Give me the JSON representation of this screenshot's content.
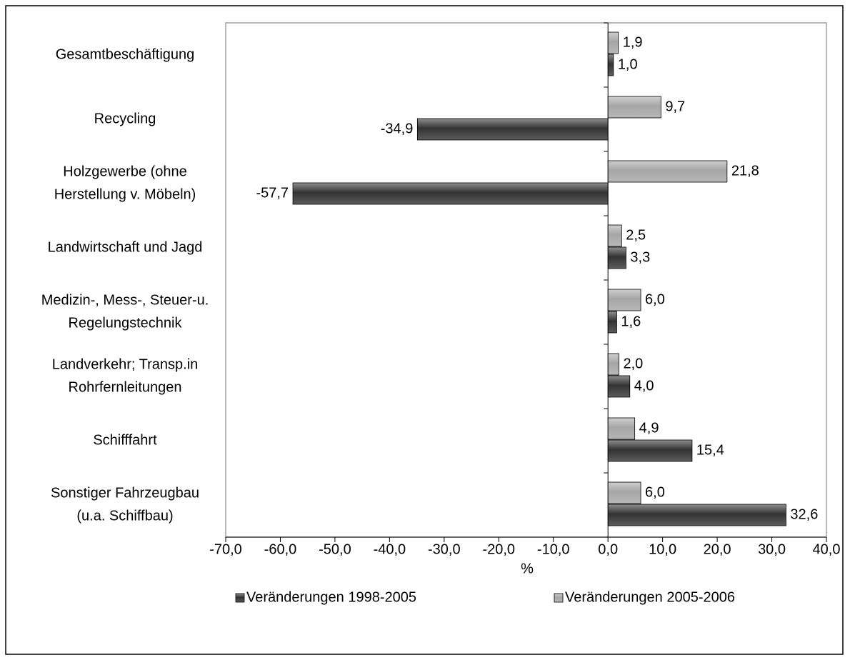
{
  "chart_data": {
    "type": "bar",
    "orientation": "horizontal",
    "categories": [
      [
        "Gesamtbeschäftigung"
      ],
      [
        "Recycling"
      ],
      [
        "Holzgewerbe (ohne",
        "Herstellung v. Möbeln)"
      ],
      [
        "Landwirtschaft und Jagd"
      ],
      [
        "Medizin-, Mess-, Steuer-u.",
        "Regelungstechnik"
      ],
      [
        "Landverkehr; Transp.in",
        "Rohrfernleitungen"
      ],
      [
        "Schifffahrt"
      ],
      [
        "Sonstiger Fahrzeugbau",
        "(u.a. Schiffbau)"
      ]
    ],
    "series": [
      {
        "name": "Veränderungen 1998-2005",
        "color": "#333333",
        "values": [
          1.0,
          -34.9,
          -57.7,
          3.3,
          1.6,
          4.0,
          15.4,
          32.6
        ],
        "value_labels": [
          "1,0",
          "-34,9",
          "-57,7",
          "3,3",
          "1,6",
          "4,0",
          "15,4",
          "32,6"
        ]
      },
      {
        "name": "Veränderungen 2005-2006",
        "color": "#a6a6a6",
        "values": [
          1.9,
          9.7,
          21.8,
          2.5,
          6.0,
          2.0,
          4.9,
          6.0
        ],
        "value_labels": [
          "1,9",
          "9,7",
          "21,8",
          "2,5",
          "6,0",
          "2,0",
          "4,9",
          "6,0"
        ]
      }
    ],
    "xlabel": "%",
    "xlim": [
      -70,
      40
    ],
    "xticks": [
      {
        "value": -70,
        "label": "-70,0"
      },
      {
        "value": -60,
        "label": "-60,0"
      },
      {
        "value": -50,
        "label": "-50,0"
      },
      {
        "value": -40,
        "label": "-40,0"
      },
      {
        "value": -30,
        "label": "-30,0"
      },
      {
        "value": -20,
        "label": "-20,0"
      },
      {
        "value": -10,
        "label": "-10,0"
      },
      {
        "value": 0,
        "label": "0,0"
      },
      {
        "value": 10,
        "label": "10,0"
      },
      {
        "value": 20,
        "label": "20,0"
      },
      {
        "value": 30,
        "label": "30,0"
      },
      {
        "value": 40,
        "label": "40,0"
      }
    ],
    "grid": false,
    "legend": "bottom"
  }
}
